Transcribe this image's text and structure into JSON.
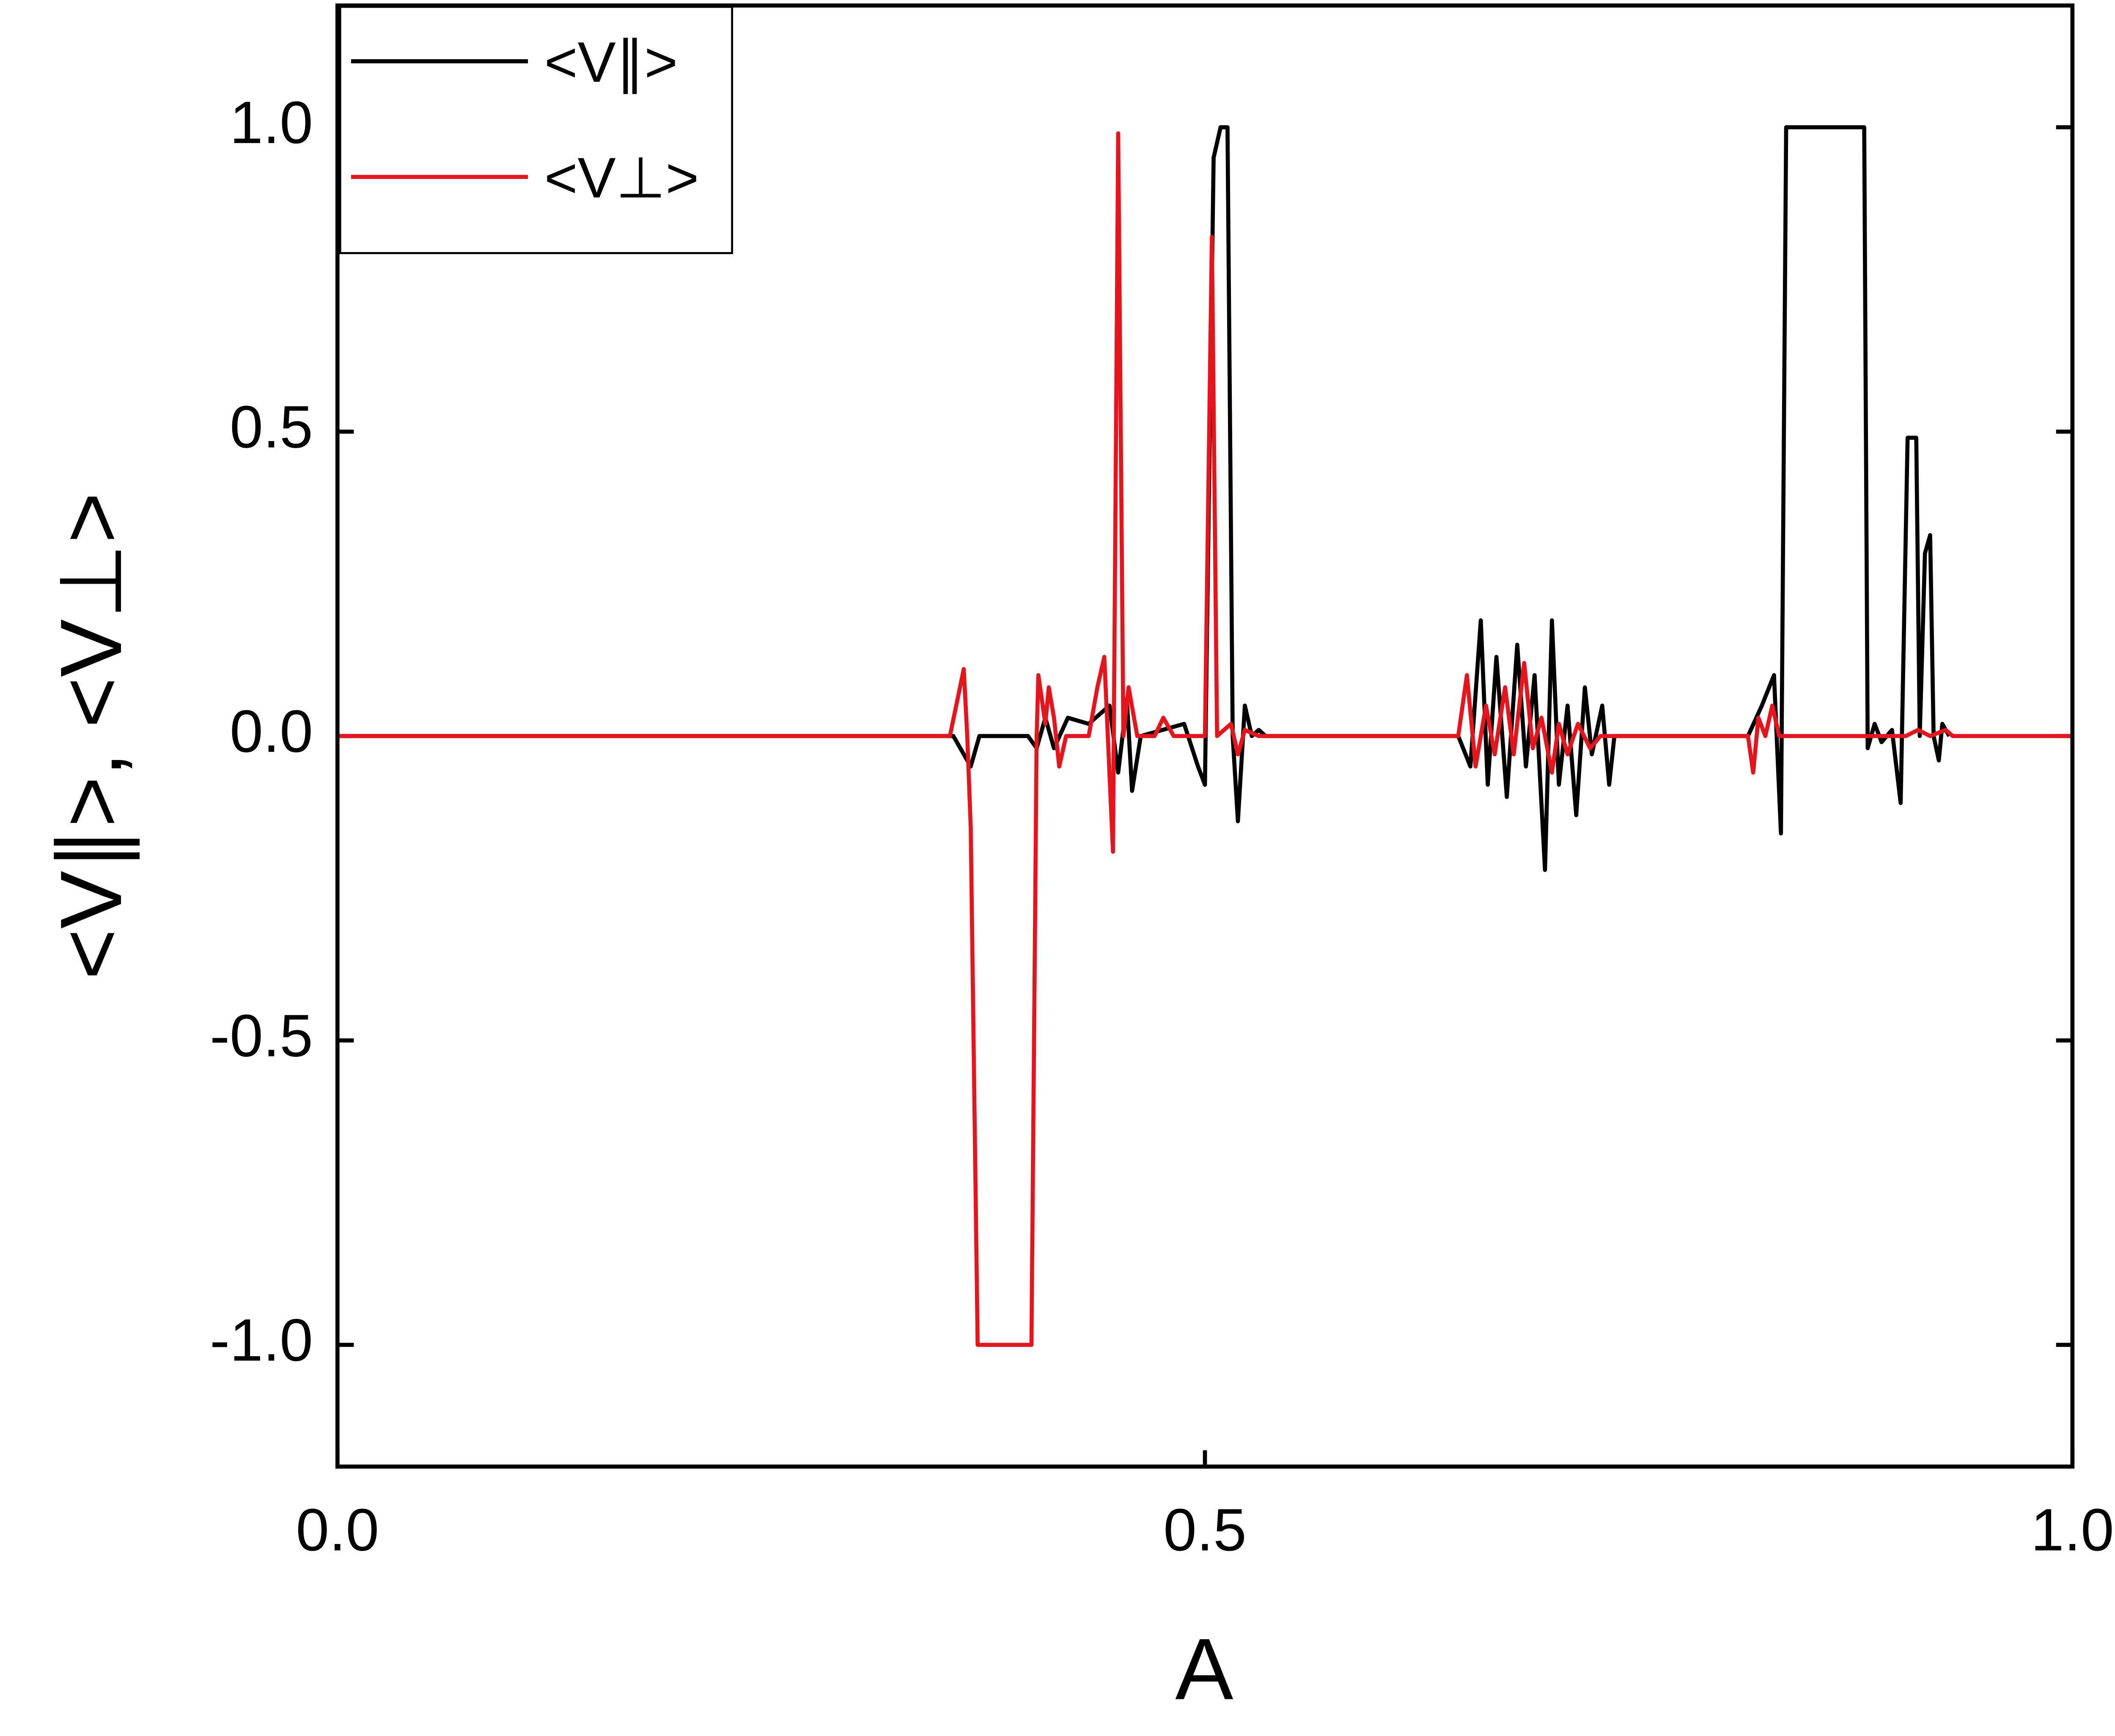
{
  "chart_data": {
    "type": "line",
    "x_label": "A",
    "y_label": "<V∥>, <V⊥>",
    "xlim": [
      0,
      1
    ],
    "xticks": [
      {
        "value": 0,
        "label": "0.0"
      },
      {
        "value": 0.5,
        "label": "0.5"
      },
      {
        "value": 1,
        "label": "1.0"
      }
    ],
    "ylim": [
      -1.2,
      1.2
    ],
    "yticks": [
      {
        "value": -1,
        "label": "-1.0"
      },
      {
        "value": -0.5,
        "label": "-0.5"
      },
      {
        "value": 0,
        "label": "0.0"
      },
      {
        "value": 0.5,
        "label": "0.5"
      },
      {
        "value": 1,
        "label": "1.0"
      }
    ],
    "legend": "upper left",
    "series": [
      {
        "name": "<V∥>",
        "color": "#000000",
        "x": [
          0,
          0.355,
          0.365,
          0.37,
          0.398,
          0.403,
          0.408,
          0.413,
          0.421,
          0.433,
          0.445,
          0.45,
          0.455,
          0.458,
          0.463,
          0.488,
          0.496,
          0.5,
          0.505,
          0.509,
          0.513,
          0.516,
          0.519,
          0.523,
          0.527,
          0.531,
          0.535,
          0.646,
          0.653,
          0.659,
          0.663,
          0.668,
          0.674,
          0.68,
          0.685,
          0.69,
          0.696,
          0.7,
          0.704,
          0.709,
          0.714,
          0.719,
          0.723,
          0.729,
          0.733,
          0.736,
          0.813,
          0.821,
          0.828,
          0.832,
          0.835,
          0.88,
          0.882,
          0.886,
          0.89,
          0.896,
          0.901,
          0.905,
          0.91,
          0.912,
          0.915,
          0.918,
          0.92,
          0.923,
          0.925,
          0.929
        ],
        "values": [
          0,
          0,
          -0.05,
          0,
          0,
          -0.02,
          0.03,
          -0.02,
          0.03,
          0.02,
          0.05,
          -0.06,
          0.06,
          -0.09,
          0,
          0.02,
          -0.05,
          -0.08,
          0.95,
          1,
          1,
          0,
          -0.14,
          0.05,
          0,
          0.01,
          0,
          0,
          -0.05,
          0.19,
          -0.08,
          0.13,
          -0.1,
          0.15,
          -0.05,
          0.1,
          -0.22,
          0.19,
          -0.08,
          0.05,
          -0.13,
          0.08,
          -0.03,
          0.05,
          -0.08,
          0,
          0,
          0.05,
          0.1,
          -0.16,
          1,
          1,
          -0.02,
          0.02,
          -0.01,
          0.01,
          -0.11,
          0.49,
          0.49,
          0,
          0.3,
          0.33,
          0,
          -0.04,
          0.02,
          0
        ]
      },
      {
        "name": "<V⊥>",
        "color": "#e8141b",
        "x": [
          0,
          0.353,
          0.361,
          0.363,
          0.365,
          0.369,
          0.4,
          0.403,
          0.404,
          0.408,
          0.41,
          0.413,
          0.416,
          0.42,
          0.433,
          0.438,
          0.442,
          0.447,
          0.45,
          0.453,
          0.456,
          0.461,
          0.471,
          0.476,
          0.482,
          0.5,
          0.504,
          0.507,
          0.515,
          0.519,
          0.523,
          0.531,
          0.646,
          0.651,
          0.656,
          0.662,
          0.667,
          0.673,
          0.678,
          0.684,
          0.689,
          0.694,
          0.7,
          0.704,
          0.709,
          0.715,
          0.722,
          0.728,
          0.813,
          0.816,
          0.819,
          0.823,
          0.827,
          0.831,
          0.904,
          0.911,
          0.918,
          0.927,
          0.931,
          1
        ],
        "values": [
          0,
          0,
          0.11,
          0,
          -0.15,
          -1,
          -1,
          0,
          0.1,
          0.02,
          0.08,
          0.03,
          -0.05,
          0,
          0,
          0.08,
          0.13,
          -0.19,
          0.99,
          0,
          0.08,
          0,
          0,
          0.03,
          0,
          0,
          0.82,
          0,
          0.02,
          -0.03,
          0.01,
          0,
          0,
          0.1,
          -0.05,
          0.05,
          -0.03,
          0.08,
          -0.03,
          0.12,
          -0.02,
          0.03,
          -0.06,
          0.02,
          -0.03,
          0.02,
          -0.02,
          0,
          0,
          -0.06,
          0.03,
          0,
          0.05,
          0,
          0,
          0.01,
          0,
          0.01,
          0,
          0
        ]
      }
    ]
  }
}
